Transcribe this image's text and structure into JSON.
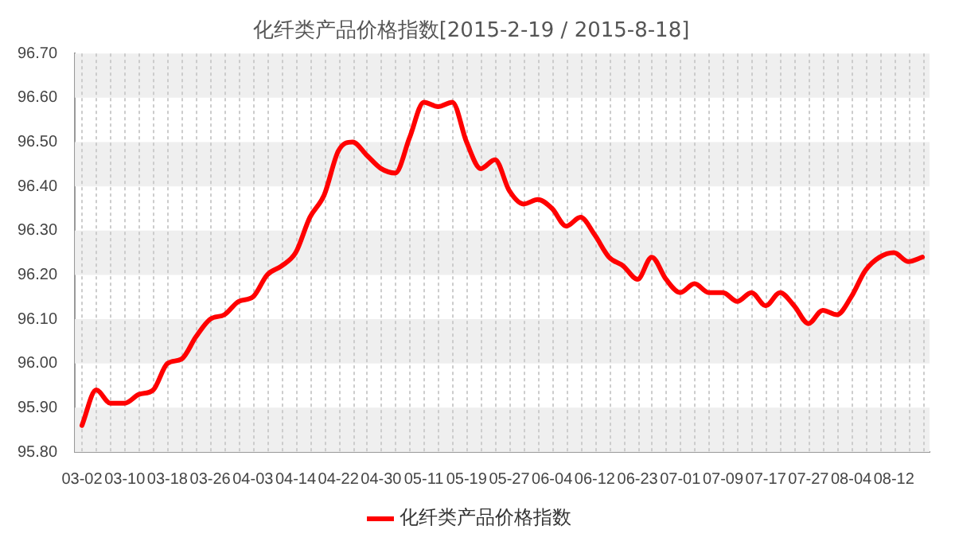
{
  "chart_data": {
    "type": "line",
    "title": "化纤类产品价格指数[2015-2-19 / 2015-8-18]",
    "categories": [
      "03-02",
      null,
      null,
      "03-10",
      null,
      null,
      "03-18",
      null,
      null,
      "03-26",
      null,
      null,
      "04-03",
      null,
      null,
      "04-14",
      null,
      null,
      "04-22",
      null,
      null,
      "04-30",
      null,
      null,
      "05-11",
      null,
      null,
      "05-19",
      null,
      null,
      "05-27",
      null,
      null,
      "06-04",
      null,
      null,
      "06-12",
      null,
      null,
      "06-23",
      null,
      null,
      "07-01",
      null,
      null,
      "07-09",
      null,
      null,
      "07-17",
      null,
      null,
      "07-27",
      null,
      null,
      "08-04",
      null,
      null,
      "08-12",
      null,
      null
    ],
    "series": [
      {
        "name": "化纤类产品价格指数",
        "color": "#ff0000",
        "values": [
          95.86,
          95.94,
          95.91,
          95.91,
          95.93,
          95.94,
          96.0,
          96.01,
          96.06,
          96.1,
          96.11,
          96.14,
          96.15,
          96.2,
          96.22,
          96.25,
          96.33,
          96.38,
          96.48,
          96.5,
          96.47,
          96.44,
          96.43,
          96.51,
          96.59,
          96.58,
          96.59,
          96.5,
          96.44,
          96.46,
          96.39,
          96.36,
          96.37,
          96.35,
          96.31,
          96.33,
          96.29,
          96.24,
          96.22,
          96.19,
          96.24,
          96.19,
          96.16,
          96.18,
          96.16,
          96.16,
          96.14,
          96.16,
          96.13,
          96.16,
          96.13,
          96.09,
          96.12,
          96.11,
          96.15,
          96.21,
          96.24,
          96.25,
          96.23,
          96.24
        ]
      }
    ],
    "ylim": [
      95.8,
      96.7
    ],
    "yticks": [
      {
        "value": 95.8,
        "label": "95.80"
      },
      {
        "value": 95.9,
        "label": "95.90"
      },
      {
        "value": 96.0,
        "label": "96.00"
      },
      {
        "value": 96.1,
        "label": "96.10"
      },
      {
        "value": 96.2,
        "label": "96.20"
      },
      {
        "value": 96.3,
        "label": "96.30"
      },
      {
        "value": 96.4,
        "label": "96.40"
      },
      {
        "value": 96.5,
        "label": "96.50"
      },
      {
        "value": 96.6,
        "label": "96.60"
      },
      {
        "value": 96.7,
        "label": "96.70"
      }
    ],
    "grid": true,
    "legend": "bottom",
    "marker": "none",
    "line_style": "solid"
  }
}
